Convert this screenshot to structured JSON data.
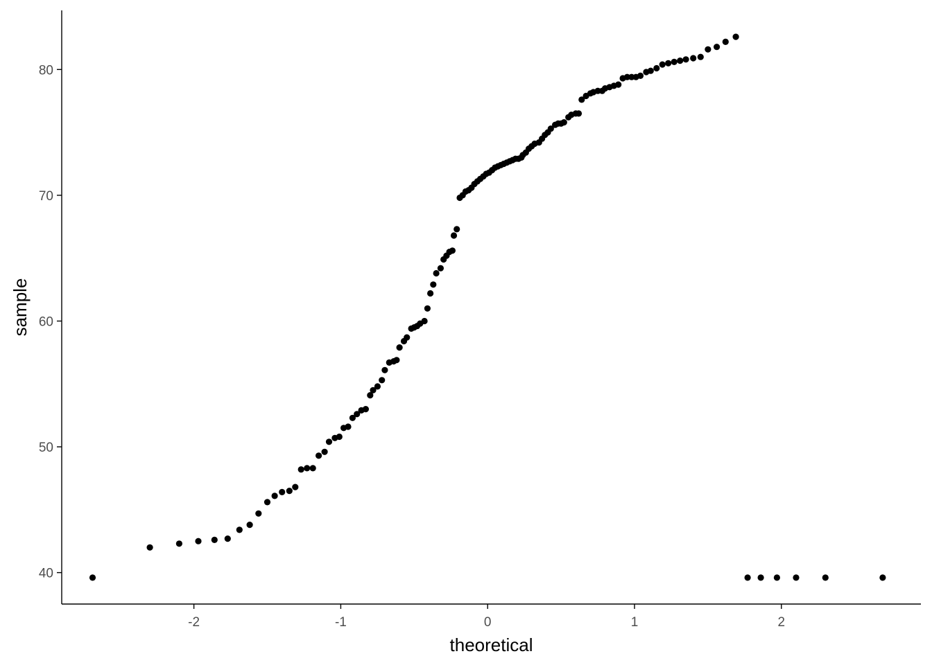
{
  "chart_data": {
    "type": "scatter",
    "title": "",
    "xlabel": "theoretical",
    "ylabel": "sample",
    "xlim": [
      -2.9,
      2.95
    ],
    "ylim": [
      37.5,
      84.7
    ],
    "xticks": [
      -2,
      -1,
      0,
      1,
      2
    ],
    "xtick_labels": [
      "-2",
      "-1",
      "0",
      "1",
      "2"
    ],
    "yticks": [
      40,
      50,
      60,
      70,
      80
    ],
    "ytick_labels": [
      "40",
      "50",
      "60",
      "70",
      "80"
    ],
    "grid": false,
    "legend": "none",
    "point_color": "#000000",
    "axis_color": "#000000",
    "x": [
      -2.69,
      -2.3,
      -2.1,
      -1.97,
      -1.86,
      -1.77,
      -1.69,
      -1.62,
      -1.56,
      -1.5,
      -1.45,
      -1.4,
      -1.35,
      -1.31,
      -1.27,
      -1.23,
      -1.19,
      -1.15,
      -1.11,
      -1.08,
      -1.04,
      -1.01,
      -0.98,
      -0.95,
      -0.92,
      -0.89,
      -0.86,
      -0.83,
      -0.8,
      -0.78,
      -0.75,
      -0.72,
      -0.7,
      -0.67,
      -0.64,
      -0.62,
      -0.6,
      -0.57,
      -0.55,
      -0.52,
      -0.5,
      -0.48,
      -0.46,
      -0.43,
      -0.41,
      -0.39,
      -0.37,
      -0.35,
      -0.32,
      -0.3,
      -0.28,
      -0.26,
      -0.24,
      -0.23,
      -0.21,
      -0.19,
      -0.17,
      -0.15,
      -0.13,
      -0.11,
      -0.09,
      -0.07,
      -0.05,
      -0.03,
      -0.01,
      0.01,
      0.03,
      0.05,
      0.07,
      0.09,
      0.11,
      0.13,
      0.15,
      0.17,
      0.19,
      0.21,
      0.23,
      0.24,
      0.26,
      0.28,
      0.3,
      0.32,
      0.35,
      0.37,
      0.39,
      0.41,
      0.43,
      0.46,
      0.48,
      0.5,
      0.52,
      0.55,
      0.57,
      0.6,
      0.62,
      0.64,
      0.67,
      0.7,
      0.72,
      0.75,
      0.78,
      0.8,
      0.83,
      0.86,
      0.89,
      0.92,
      0.95,
      0.98,
      1.01,
      1.04,
      1.08,
      1.11,
      1.15,
      1.19,
      1.23,
      1.27,
      1.31,
      1.35,
      1.4,
      1.45,
      1.5,
      1.56,
      1.62,
      1.69,
      1.77,
      1.86,
      1.97,
      2.1,
      2.3,
      2.69
    ],
    "y": [
      39.6,
      42.0,
      42.3,
      42.5,
      42.6,
      42.7,
      43.4,
      43.8,
      44.7,
      45.6,
      46.1,
      46.4,
      46.5,
      46.8,
      48.2,
      48.3,
      48.3,
      49.3,
      49.6,
      50.4,
      50.7,
      50.8,
      51.5,
      51.6,
      52.3,
      52.6,
      52.9,
      53.0,
      54.1,
      54.5,
      54.8,
      55.3,
      56.1,
      56.7,
      56.8,
      56.9,
      57.9,
      58.4,
      58.7,
      59.4,
      59.5,
      59.6,
      59.8,
      60.0,
      61.0,
      62.2,
      62.9,
      63.8,
      64.2,
      64.9,
      65.2,
      65.5,
      65.6,
      66.8,
      67.3,
      69.8,
      70.0,
      70.3,
      70.4,
      70.6,
      70.9,
      71.1,
      71.3,
      71.5,
      71.7,
      71.8,
      72.0,
      72.2,
      72.3,
      72.4,
      72.5,
      72.6,
      72.7,
      72.8,
      72.9,
      72.9,
      73.0,
      73.2,
      73.4,
      73.7,
      73.9,
      74.1,
      74.2,
      74.5,
      74.8,
      75.0,
      75.3,
      75.6,
      75.7,
      75.7,
      75.8,
      76.2,
      76.4,
      76.5,
      76.5,
      77.6,
      77.9,
      78.1,
      78.2,
      78.3,
      78.3,
      78.5,
      78.6,
      78.7,
      78.8,
      79.3,
      79.4,
      79.4,
      79.4,
      79.5,
      79.8,
      79.9,
      80.1,
      80.4,
      80.5,
      80.6,
      80.7,
      80.8,
      80.9,
      81.0,
      81.6,
      81.8,
      82.2,
      82.6,
      39.6,
      39.6,
      39.6,
      39.6,
      39.6,
      39.6
    ]
  }
}
